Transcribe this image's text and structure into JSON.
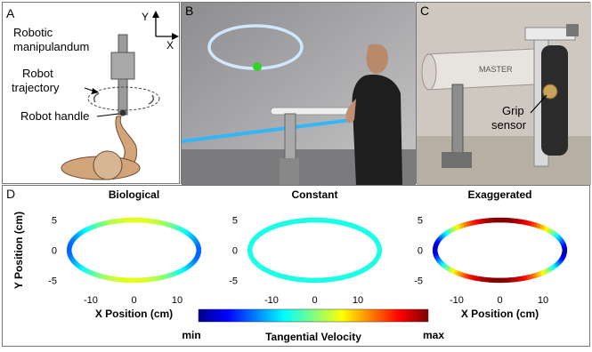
{
  "panels": {
    "a": {
      "letter": "A",
      "axis_y": "Y",
      "axis_x": "X",
      "label_manipulandum_1": "Robotic",
      "label_manipulandum_2": "manipulandum",
      "label_trajectory_1": "Robot",
      "label_trajectory_2": "trajectory",
      "label_handle": "Robot handle"
    },
    "b": {
      "letter": "B"
    },
    "c": {
      "letter": "C",
      "sensor_label_1": "Grip",
      "sensor_label_2": "sensor",
      "brand_text": "MASTER"
    },
    "d": {
      "letter": "D"
    }
  },
  "colorbar": {
    "min_label": "min",
    "max_label": "max",
    "title": "Tangential Velocity",
    "colormap": [
      "#00008f",
      "#0000ff",
      "#0080ff",
      "#00ffff",
      "#80ff80",
      "#ffff00",
      "#ff8000",
      "#ff0000",
      "#800000"
    ]
  },
  "chart_data": [
    {
      "type": "scatter",
      "title": "Biological",
      "xlabel": "X Position (cm)",
      "ylabel": "Y Position (cm)",
      "xlim": [
        -17,
        17
      ],
      "ylim": [
        -7,
        7
      ],
      "xticks": [
        -10,
        0,
        10
      ],
      "yticks": [
        5,
        0,
        -5
      ],
      "shape": "ellipse",
      "semi_axes": [
        15,
        5
      ],
      "velocity_profile": "biological"
    },
    {
      "type": "scatter",
      "title": "Constant",
      "xlabel": "X Position (cm)",
      "ylabel": "",
      "xlim": [
        -17,
        17
      ],
      "ylim": [
        -7,
        7
      ],
      "xticks": [
        -10,
        0,
        10
      ],
      "yticks": [
        5,
        0,
        -5
      ],
      "shape": "ellipse",
      "semi_axes": [
        15,
        5
      ],
      "velocity_profile": "constant"
    },
    {
      "type": "scatter",
      "title": "Exaggerated",
      "xlabel": "X Position (cm)",
      "ylabel": "",
      "xlim": [
        -17,
        17
      ],
      "ylim": [
        -7,
        7
      ],
      "xticks": [
        -10,
        0,
        10
      ],
      "yticks": [
        5,
        0,
        -5
      ],
      "shape": "ellipse",
      "semi_axes": [
        15,
        5
      ],
      "velocity_profile": "exaggerated"
    }
  ]
}
